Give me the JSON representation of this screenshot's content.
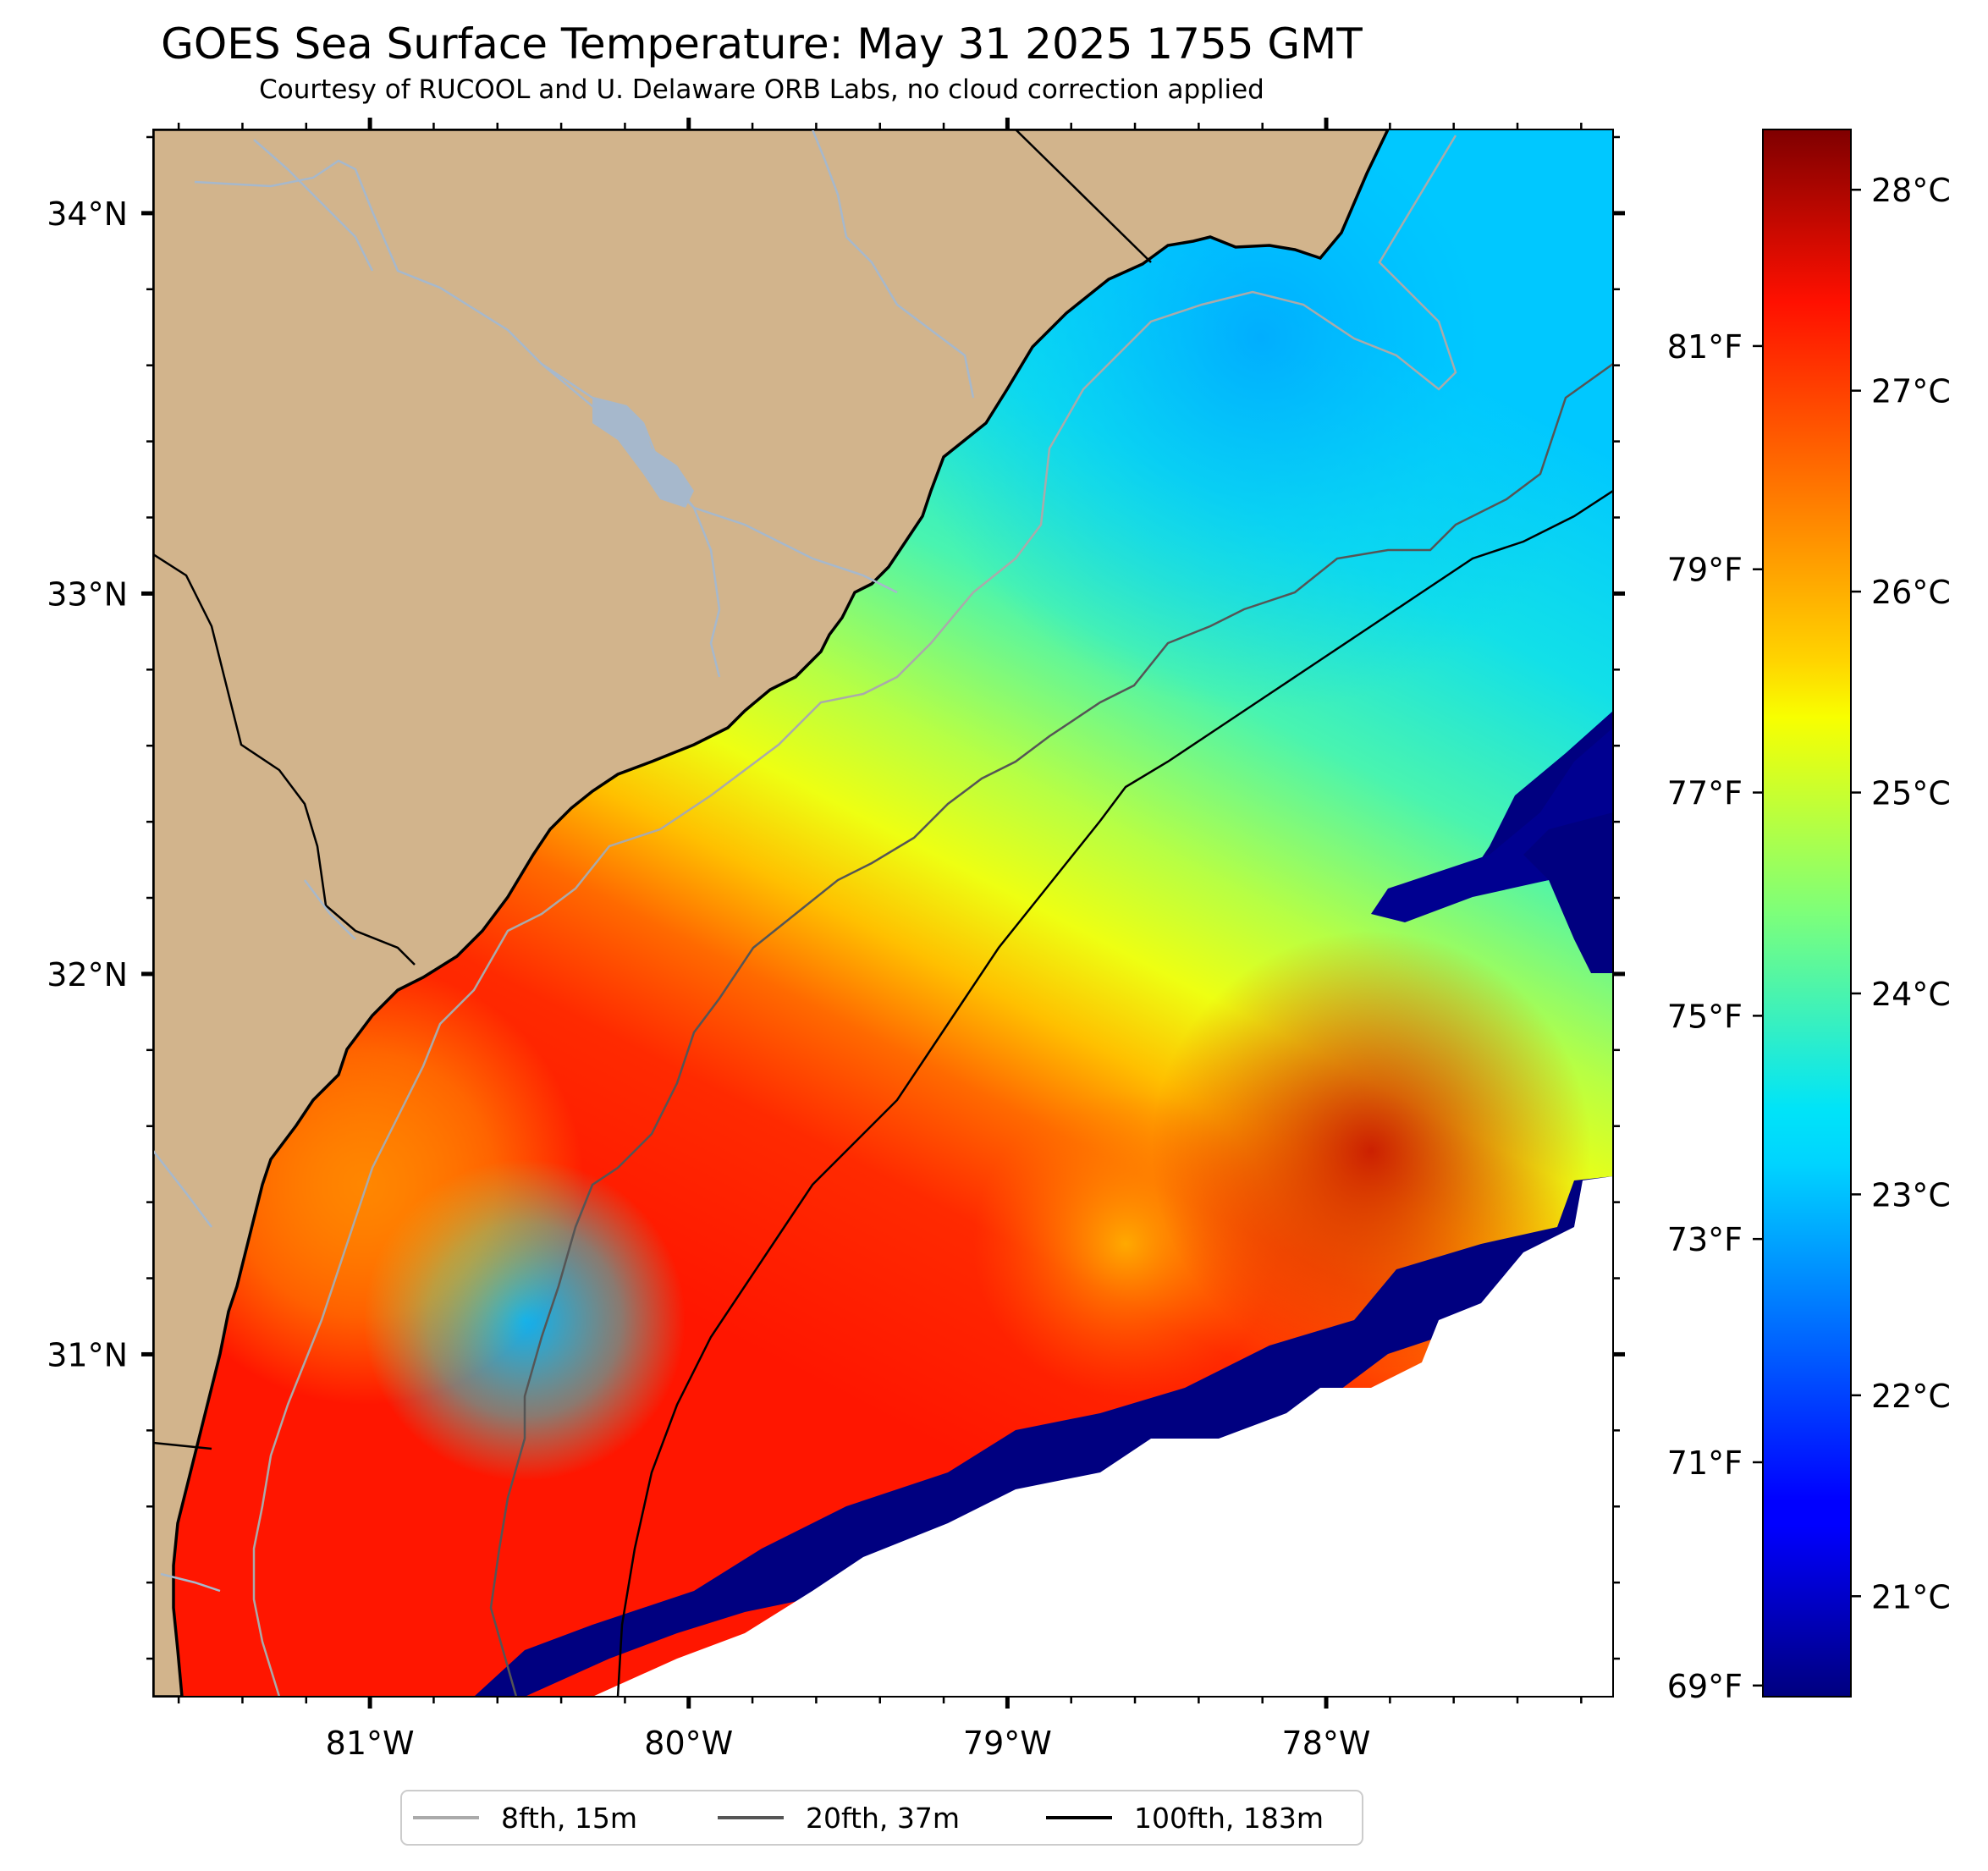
{
  "title": "GOES Sea Surface Temperature: May 31 2025 1755 GMT",
  "subtitle": "Courtesy of RUCOOL and U. Delaware ORB Labs, no cloud correction applied",
  "map": {
    "lon_range": [
      -81.68,
      -77.1
    ],
    "lat_range": [
      30.1,
      34.22
    ],
    "lat_ticks": [
      {
        "value": 34,
        "label": "34°N"
      },
      {
        "value": 33,
        "label": "33°N"
      },
      {
        "value": 32,
        "label": "32°N"
      },
      {
        "value": 31,
        "label": "31°N"
      }
    ],
    "lon_ticks": [
      {
        "value": -81,
        "label": "81°W"
      },
      {
        "value": -80,
        "label": "80°W"
      },
      {
        "value": -79,
        "label": "79°W"
      },
      {
        "value": -78,
        "label": "78°W"
      }
    ],
    "colors": {
      "land": "#d2b48c",
      "coastline": "#000000",
      "rivers": "#a6b8cc",
      "no_data": "#ffffff"
    }
  },
  "colorbar": {
    "colormap": "jet",
    "celsius_range": [
      20.5,
      28.3
    ],
    "celsius_labels": [
      {
        "value": 28,
        "label": "28°C"
      },
      {
        "value": 27,
        "label": "27°C"
      },
      {
        "value": 26,
        "label": "26°C"
      },
      {
        "value": 25,
        "label": "25°C"
      },
      {
        "value": 24,
        "label": "24°C"
      },
      {
        "value": 23,
        "label": "23°C"
      },
      {
        "value": 22,
        "label": "22°C"
      },
      {
        "value": 21,
        "label": "21°C"
      }
    ],
    "fahrenheit_labels": [
      {
        "value": 81,
        "label": "81°F"
      },
      {
        "value": 79,
        "label": "79°F"
      },
      {
        "value": 77,
        "label": "77°F"
      },
      {
        "value": 75,
        "label": "75°F"
      },
      {
        "value": 73,
        "label": "73°F"
      },
      {
        "value": 71,
        "label": "71°F"
      },
      {
        "value": 69,
        "label": "69°F"
      }
    ]
  },
  "legend": {
    "items": [
      {
        "label": "8fth, 15m",
        "color": "#aaaaaa"
      },
      {
        "label": "20fth, 37m",
        "color": "#555555"
      },
      {
        "label": "100fth, 183m",
        "color": "#000000"
      }
    ]
  }
}
